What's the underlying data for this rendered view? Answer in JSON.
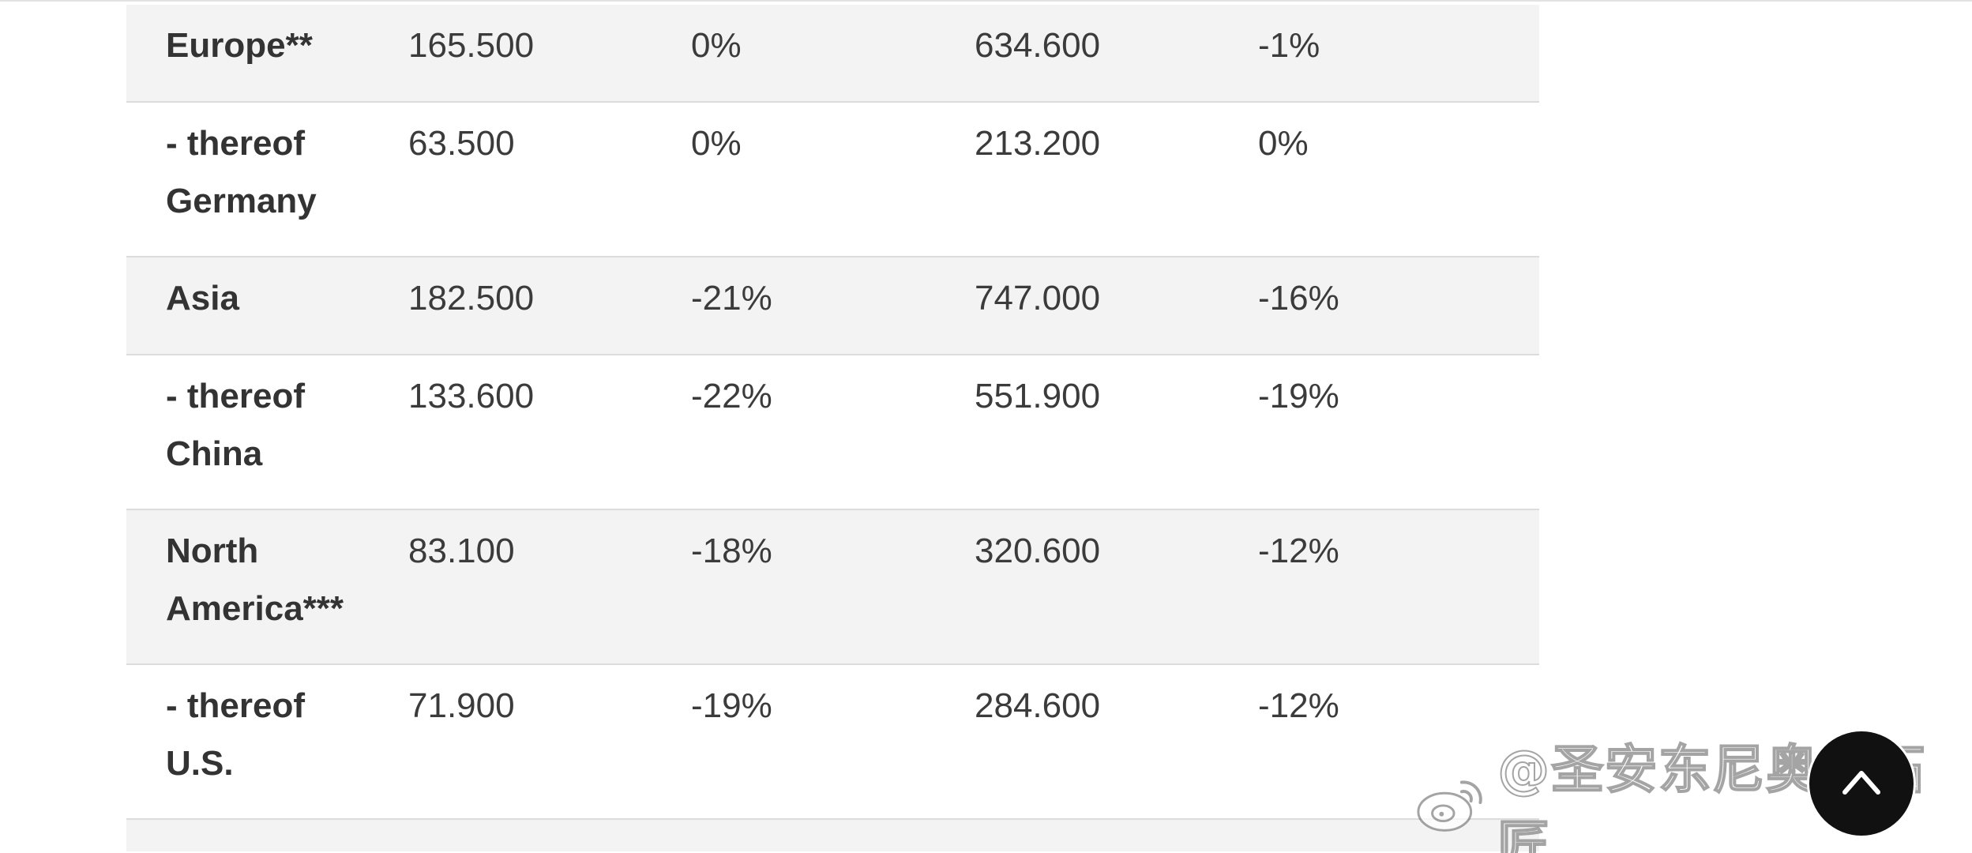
{
  "table": {
    "rows": [
      {
        "region": [
          "Europe**"
        ],
        "v1": "165.500",
        "v2": "0%",
        "v3": "634.600",
        "v4": "-1%",
        "shaded": true
      },
      {
        "region": [
          "- thereof",
          "Germany"
        ],
        "v1": "63.500",
        "v2": "0%",
        "v3": "213.200",
        "v4": "0%",
        "shaded": false
      },
      {
        "region": [
          "Asia"
        ],
        "v1": "182.500",
        "v2": "-21%",
        "v3": "747.000",
        "v4": "-16%",
        "shaded": true
      },
      {
        "region": [
          "- thereof",
          "China"
        ],
        "v1": "133.600",
        "v2": "-22%",
        "v3": "551.900",
        "v4": "-19%",
        "shaded": false
      },
      {
        "region": [
          "North",
          "America***"
        ],
        "v1": "83.100",
        "v2": "-18%",
        "v3": "320.600",
        "v4": "-12%",
        "shaded": true
      },
      {
        "region": [
          "- thereof",
          "U.S."
        ],
        "v1": "71.900",
        "v2": "-19%",
        "v3": "284.600",
        "v4": "-12%",
        "shaded": false
      }
    ]
  },
  "watermark": {
    "text": "@圣安东尼奥小石匠",
    "icon": "weibo-logo-icon"
  },
  "scroll_top": {
    "icon": "chevron-up-icon"
  },
  "colors": {
    "shaded_row": "#f3f3f3",
    "divider": "#dcdcdc",
    "text": "#3b3b3b",
    "button_bg": "#111111"
  }
}
